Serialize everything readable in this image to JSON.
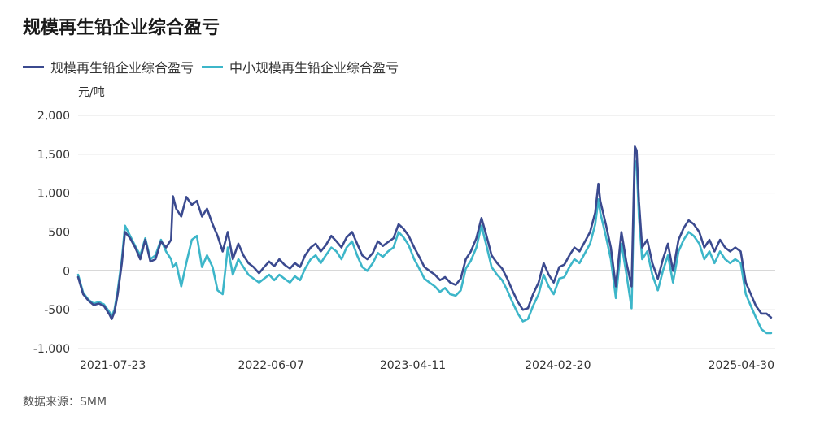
{
  "title": "规模再生铅企业综合盈亏",
  "unit": "元/吨",
  "source": "数据来源：SMM",
  "colors": {
    "series1": "#3b4a8f",
    "series2": "#3db6c9",
    "grid": "#e3e3e3",
    "zero": "#666666"
  },
  "chart_data": {
    "type": "line",
    "title": "规模再生铅企业综合盈亏",
    "ylabel": "元/吨",
    "ylim": [
      -1000,
      2000
    ],
    "yticks": [
      "2,000",
      "1,500",
      "1,000",
      "500",
      "0",
      "-500",
      "-1,000"
    ],
    "ytick_values": [
      2000,
      1500,
      1000,
      500,
      0,
      -500,
      -1000
    ],
    "xlim": [
      "2021-04-14",
      "2025-06-06"
    ],
    "xticks": [
      "2021-07-23",
      "2022-06-07",
      "2023-04-11",
      "2024-02-20",
      "2025-04-30"
    ],
    "grid": true,
    "legend": "top-left",
    "series": [
      {
        "name": "规模再生铅企业综合盈亏",
        "color": "#3b4a8f",
        "points": [
          [
            "2021-04-14",
            -80
          ],
          [
            "2021-04-25",
            -300
          ],
          [
            "2021-05-06",
            -380
          ],
          [
            "2021-05-18",
            -440
          ],
          [
            "2021-05-29",
            -420
          ],
          [
            "2021-06-09",
            -450
          ],
          [
            "2021-06-21",
            -560
          ],
          [
            "2021-06-26",
            -620
          ],
          [
            "2021-07-02",
            -530
          ],
          [
            "2021-07-09",
            -300
          ],
          [
            "2021-07-18",
            100
          ],
          [
            "2021-07-25",
            500
          ],
          [
            "2021-08-05",
            420
          ],
          [
            "2021-08-16",
            300
          ],
          [
            "2021-08-27",
            150
          ],
          [
            "2021-09-07",
            400
          ],
          [
            "2021-09-18",
            120
          ],
          [
            "2021-09-29",
            150
          ],
          [
            "2021-10-11",
            380
          ],
          [
            "2021-10-22",
            300
          ],
          [
            "2021-11-02",
            400
          ],
          [
            "2021-11-06",
            960
          ],
          [
            "2021-11-13",
            800
          ],
          [
            "2021-11-24",
            700
          ],
          [
            "2021-12-05",
            950
          ],
          [
            "2021-12-17",
            850
          ],
          [
            "2021-12-28",
            900
          ],
          [
            "2022-01-08",
            700
          ],
          [
            "2022-01-19",
            800
          ],
          [
            "2022-01-31",
            600
          ],
          [
            "2022-02-11",
            450
          ],
          [
            "2022-02-22",
            250
          ],
          [
            "2022-03-05",
            500
          ],
          [
            "2022-03-16",
            150
          ],
          [
            "2022-03-28",
            350
          ],
          [
            "2022-04-08",
            200
          ],
          [
            "2022-04-19",
            100
          ],
          [
            "2022-04-30",
            50
          ],
          [
            "2022-05-12",
            -30
          ],
          [
            "2022-05-23",
            50
          ],
          [
            "2022-06-03",
            120
          ],
          [
            "2022-06-14",
            60
          ],
          [
            "2022-06-25",
            150
          ],
          [
            "2022-07-06",
            80
          ],
          [
            "2022-07-18",
            30
          ],
          [
            "2022-07-29",
            100
          ],
          [
            "2022-08-09",
            50
          ],
          [
            "2022-08-20",
            200
          ],
          [
            "2022-09-01",
            300
          ],
          [
            "2022-09-12",
            350
          ],
          [
            "2022-09-23",
            250
          ],
          [
            "2022-10-04",
            330
          ],
          [
            "2022-10-16",
            450
          ],
          [
            "2022-10-27",
            380
          ],
          [
            "2022-11-07",
            300
          ],
          [
            "2022-11-18",
            430
          ],
          [
            "2022-11-30",
            500
          ],
          [
            "2022-12-11",
            350
          ],
          [
            "2022-12-22",
            200
          ],
          [
            "2023-01-02",
            150
          ],
          [
            "2023-01-14",
            230
          ],
          [
            "2023-01-25",
            380
          ],
          [
            "2023-02-05",
            320
          ],
          [
            "2023-02-16",
            370
          ],
          [
            "2023-02-28",
            420
          ],
          [
            "2023-03-11",
            600
          ],
          [
            "2023-03-22",
            540
          ],
          [
            "2023-04-02",
            450
          ],
          [
            "2023-04-14",
            300
          ],
          [
            "2023-04-25",
            180
          ],
          [
            "2023-05-06",
            50
          ],
          [
            "2023-05-17",
            0
          ],
          [
            "2023-05-29",
            -50
          ],
          [
            "2023-06-09",
            -120
          ],
          [
            "2023-06-20",
            -80
          ],
          [
            "2023-07-01",
            -150
          ],
          [
            "2023-07-13",
            -180
          ],
          [
            "2023-07-24",
            -100
          ],
          [
            "2023-08-04",
            150
          ],
          [
            "2023-08-15",
            250
          ],
          [
            "2023-08-27",
            420
          ],
          [
            "2023-09-07",
            680
          ],
          [
            "2023-09-18",
            450
          ],
          [
            "2023-09-29",
            200
          ],
          [
            "2023-10-11",
            100
          ],
          [
            "2023-10-22",
            30
          ],
          [
            "2023-11-02",
            -100
          ],
          [
            "2023-11-13",
            -250
          ],
          [
            "2023-11-25",
            -400
          ],
          [
            "2023-12-06",
            -500
          ],
          [
            "2023-12-17",
            -480
          ],
          [
            "2023-12-28",
            -300
          ],
          [
            "2024-01-09",
            -150
          ],
          [
            "2024-01-20",
            100
          ],
          [
            "2024-01-31",
            -50
          ],
          [
            "2024-02-11",
            -150
          ],
          [
            "2024-02-23",
            50
          ],
          [
            "2024-03-05",
            80
          ],
          [
            "2024-03-16",
            200
          ],
          [
            "2024-03-27",
            300
          ],
          [
            "2024-04-07",
            250
          ],
          [
            "2024-04-19",
            380
          ],
          [
            "2024-04-30",
            500
          ],
          [
            "2024-05-11",
            750
          ],
          [
            "2024-05-18",
            1120
          ],
          [
            "2024-05-22",
            900
          ],
          [
            "2024-06-03",
            600
          ],
          [
            "2024-06-14",
            300
          ],
          [
            "2024-06-25",
            -200
          ],
          [
            "2024-07-07",
            500
          ],
          [
            "2024-07-18",
            100
          ],
          [
            "2024-07-29",
            -200
          ],
          [
            "2024-08-05",
            1600
          ],
          [
            "2024-08-09",
            1550
          ],
          [
            "2024-08-14",
            900
          ],
          [
            "2024-08-21",
            300
          ],
          [
            "2024-09-01",
            400
          ],
          [
            "2024-09-12",
            100
          ],
          [
            "2024-09-24",
            -100
          ],
          [
            "2024-10-05",
            150
          ],
          [
            "2024-10-16",
            350
          ],
          [
            "2024-10-27",
            0
          ],
          [
            "2024-11-08",
            400
          ],
          [
            "2024-11-19",
            550
          ],
          [
            "2024-11-30",
            650
          ],
          [
            "2024-12-11",
            600
          ],
          [
            "2024-12-23",
            500
          ],
          [
            "2025-01-03",
            300
          ],
          [
            "2025-01-14",
            400
          ],
          [
            "2025-01-25",
            250
          ],
          [
            "2025-02-06",
            400
          ],
          [
            "2025-02-17",
            300
          ],
          [
            "2025-02-28",
            250
          ],
          [
            "2025-03-11",
            300
          ],
          [
            "2025-03-23",
            250
          ],
          [
            "2025-04-03",
            -150
          ],
          [
            "2025-04-14",
            -300
          ],
          [
            "2025-04-25",
            -450
          ],
          [
            "2025-05-07",
            -550
          ],
          [
            "2025-05-18",
            -550
          ],
          [
            "2025-05-28",
            -600
          ]
        ]
      },
      {
        "name": "中小规模再生铅企业综合盈亏",
        "color": "#3db6c9",
        "points": [
          [
            "2021-04-14",
            -50
          ],
          [
            "2021-04-25",
            -280
          ],
          [
            "2021-05-06",
            -370
          ],
          [
            "2021-05-18",
            -420
          ],
          [
            "2021-05-29",
            -400
          ],
          [
            "2021-06-09",
            -430
          ],
          [
            "2021-06-21",
            -530
          ],
          [
            "2021-06-26",
            -580
          ],
          [
            "2021-07-02",
            -500
          ],
          [
            "2021-07-09",
            -250
          ],
          [
            "2021-07-18",
            150
          ],
          [
            "2021-07-25",
            580
          ],
          [
            "2021-08-05",
            450
          ],
          [
            "2021-08-16",
            320
          ],
          [
            "2021-08-27",
            200
          ],
          [
            "2021-09-07",
            420
          ],
          [
            "2021-09-18",
            150
          ],
          [
            "2021-09-29",
            200
          ],
          [
            "2021-10-11",
            400
          ],
          [
            "2021-10-22",
            250
          ],
          [
            "2021-11-02",
            150
          ],
          [
            "2021-11-06",
            50
          ],
          [
            "2021-11-13",
            100
          ],
          [
            "2021-11-24",
            -200
          ],
          [
            "2021-12-05",
            100
          ],
          [
            "2021-12-17",
            400
          ],
          [
            "2021-12-28",
            450
          ],
          [
            "2022-01-08",
            50
          ],
          [
            "2022-01-19",
            200
          ],
          [
            "2022-01-31",
            50
          ],
          [
            "2022-02-11",
            -250
          ],
          [
            "2022-02-22",
            -300
          ],
          [
            "2022-03-05",
            300
          ],
          [
            "2022-03-16",
            -50
          ],
          [
            "2022-03-28",
            150
          ],
          [
            "2022-04-08",
            50
          ],
          [
            "2022-04-19",
            -50
          ],
          [
            "2022-04-30",
            -100
          ],
          [
            "2022-05-12",
            -150
          ],
          [
            "2022-05-23",
            -100
          ],
          [
            "2022-06-03",
            -50
          ],
          [
            "2022-06-14",
            -120
          ],
          [
            "2022-06-25",
            -50
          ],
          [
            "2022-07-06",
            -100
          ],
          [
            "2022-07-18",
            -150
          ],
          [
            "2022-07-29",
            -70
          ],
          [
            "2022-08-09",
            -120
          ],
          [
            "2022-08-20",
            30
          ],
          [
            "2022-09-01",
            150
          ],
          [
            "2022-09-12",
            200
          ],
          [
            "2022-09-23",
            100
          ],
          [
            "2022-10-04",
            200
          ],
          [
            "2022-10-16",
            300
          ],
          [
            "2022-10-27",
            250
          ],
          [
            "2022-11-07",
            150
          ],
          [
            "2022-11-18",
            300
          ],
          [
            "2022-11-30",
            380
          ],
          [
            "2022-12-11",
            200
          ],
          [
            "2022-12-22",
            50
          ],
          [
            "2023-01-02",
            0
          ],
          [
            "2023-01-14",
            100
          ],
          [
            "2023-01-25",
            230
          ],
          [
            "2023-02-05",
            180
          ],
          [
            "2023-02-16",
            250
          ],
          [
            "2023-02-28",
            300
          ],
          [
            "2023-03-11",
            500
          ],
          [
            "2023-03-22",
            430
          ],
          [
            "2023-04-02",
            330
          ],
          [
            "2023-04-14",
            150
          ],
          [
            "2023-04-25",
            30
          ],
          [
            "2023-05-06",
            -100
          ],
          [
            "2023-05-17",
            -150
          ],
          [
            "2023-05-29",
            -200
          ],
          [
            "2023-06-09",
            -270
          ],
          [
            "2023-06-20",
            -220
          ],
          [
            "2023-07-01",
            -300
          ],
          [
            "2023-07-13",
            -320
          ],
          [
            "2023-07-24",
            -250
          ],
          [
            "2023-08-04",
            30
          ],
          [
            "2023-08-15",
            130
          ],
          [
            "2023-08-27",
            300
          ],
          [
            "2023-09-07",
            580
          ],
          [
            "2023-09-18",
            320
          ],
          [
            "2023-09-29",
            50
          ],
          [
            "2023-10-11",
            -50
          ],
          [
            "2023-10-22",
            -120
          ],
          [
            "2023-11-02",
            -250
          ],
          [
            "2023-11-13",
            -400
          ],
          [
            "2023-11-25",
            -550
          ],
          [
            "2023-12-06",
            -650
          ],
          [
            "2023-12-17",
            -620
          ],
          [
            "2023-12-28",
            -450
          ],
          [
            "2024-01-09",
            -300
          ],
          [
            "2024-01-20",
            -50
          ],
          [
            "2024-01-31",
            -200
          ],
          [
            "2024-02-11",
            -300
          ],
          [
            "2024-02-23",
            -100
          ],
          [
            "2024-03-05",
            -80
          ],
          [
            "2024-03-16",
            50
          ],
          [
            "2024-03-27",
            150
          ],
          [
            "2024-04-07",
            100
          ],
          [
            "2024-04-19",
            230
          ],
          [
            "2024-04-30",
            350
          ],
          [
            "2024-05-11",
            600
          ],
          [
            "2024-05-18",
            920
          ],
          [
            "2024-05-22",
            750
          ],
          [
            "2024-06-03",
            450
          ],
          [
            "2024-06-14",
            150
          ],
          [
            "2024-06-25",
            -350
          ],
          [
            "2024-07-07",
            350
          ],
          [
            "2024-07-18",
            -50
          ],
          [
            "2024-07-29",
            -480
          ],
          [
            "2024-08-05",
            1420
          ],
          [
            "2024-08-09",
            1380
          ],
          [
            "2024-08-14",
            700
          ],
          [
            "2024-08-21",
            150
          ],
          [
            "2024-09-01",
            250
          ],
          [
            "2024-09-12",
            -50
          ],
          [
            "2024-09-24",
            -250
          ],
          [
            "2024-10-05",
            0
          ],
          [
            "2024-10-16",
            200
          ],
          [
            "2024-10-27",
            -150
          ],
          [
            "2024-11-08",
            250
          ],
          [
            "2024-11-19",
            400
          ],
          [
            "2024-11-30",
            500
          ],
          [
            "2024-12-11",
            450
          ],
          [
            "2024-12-23",
            350
          ],
          [
            "2025-01-03",
            150
          ],
          [
            "2025-01-14",
            250
          ],
          [
            "2025-01-25",
            100
          ],
          [
            "2025-02-06",
            250
          ],
          [
            "2025-02-17",
            150
          ],
          [
            "2025-02-28",
            100
          ],
          [
            "2025-03-11",
            150
          ],
          [
            "2025-03-23",
            100
          ],
          [
            "2025-04-03",
            -300
          ],
          [
            "2025-04-14",
            -450
          ],
          [
            "2025-04-25",
            -600
          ],
          [
            "2025-05-07",
            -750
          ],
          [
            "2025-05-18",
            -800
          ],
          [
            "2025-05-28",
            -800
          ]
        ]
      }
    ]
  }
}
